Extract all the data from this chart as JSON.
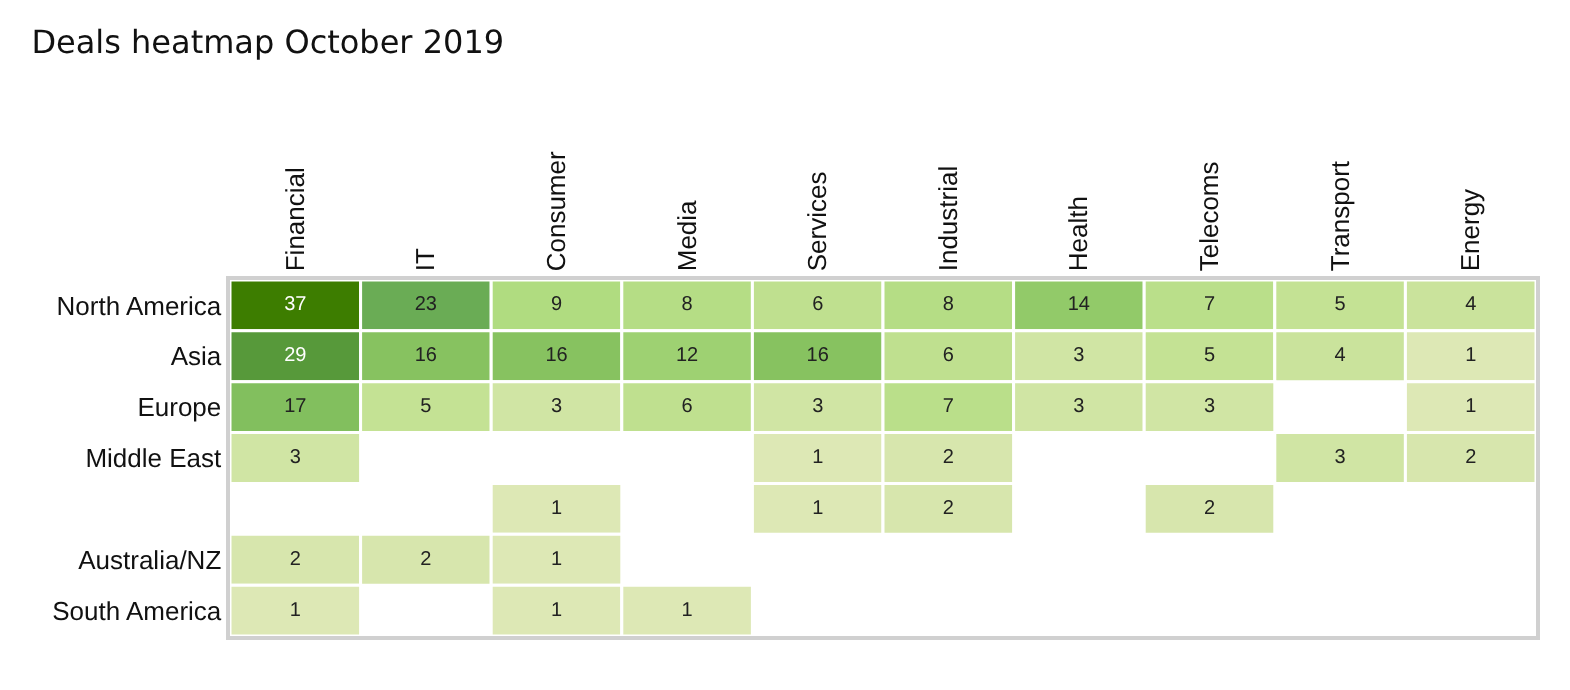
{
  "chart_data": {
    "type": "heatmap",
    "title": "Deals heatmap October 2019",
    "categories": [
      "Financial",
      "IT",
      "Consumer",
      "Media",
      "Services",
      "Industrial",
      "Health",
      "Telecoms",
      "Transport",
      "Energy"
    ],
    "y_categories": [
      "North America",
      "Asia",
      "Europe",
      "Middle East",
      null,
      "Australia/NZ",
      "South America"
    ],
    "cells": [
      [
        37,
        23,
        9,
        8,
        6,
        8,
        14,
        7,
        5,
        4
      ],
      [
        29,
        16,
        16,
        12,
        16,
        6,
        3,
        5,
        4,
        1
      ],
      [
        17,
        5,
        3,
        6,
        3,
        7,
        3,
        3,
        null,
        1
      ],
      [
        3,
        null,
        null,
        null,
        1,
        2,
        null,
        null,
        3,
        2
      ],
      [
        null,
        null,
        1,
        null,
        1,
        2,
        null,
        2,
        null,
        null
      ],
      [
        2,
        2,
        1,
        null,
        null,
        null,
        null,
        null,
        null,
        null
      ],
      [
        1,
        null,
        1,
        1,
        null,
        null,
        null,
        null,
        null,
        null
      ]
    ],
    "data_labels": true
  }
}
